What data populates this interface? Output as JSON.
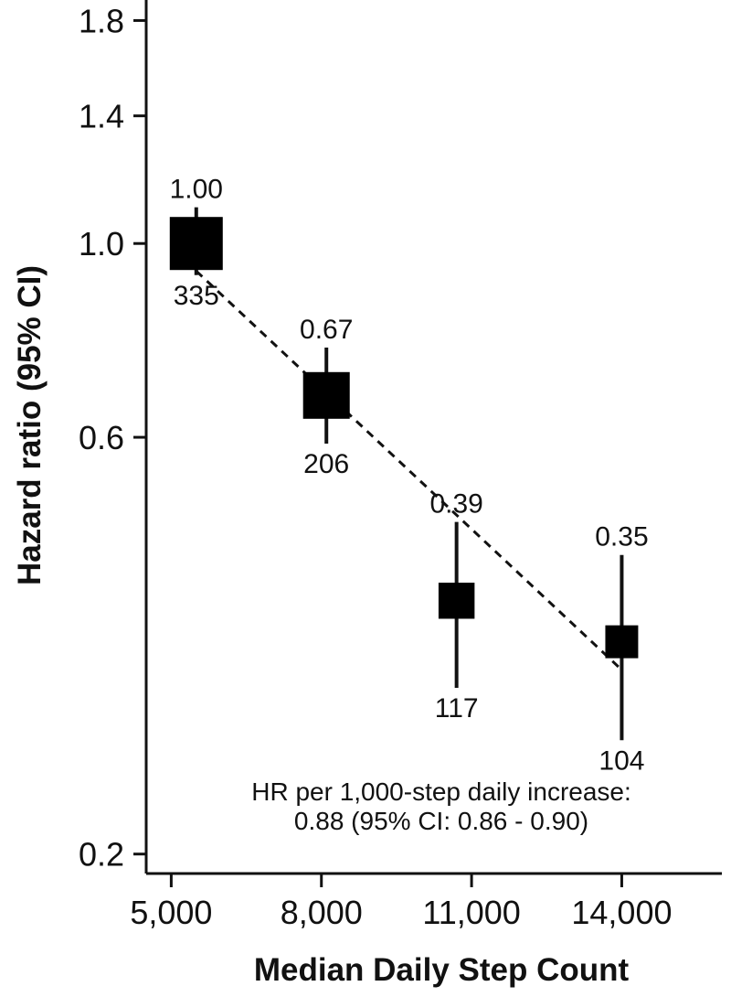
{
  "chart_data": {
    "type": "scatter",
    "xlabel": "Median Daily Step Count",
    "ylabel": "Hazard ratio (95% CI)",
    "x_ticks": [
      "5,000",
      "8,000",
      "11,000",
      "14,000"
    ],
    "x_tick_values": [
      5000,
      8000,
      11000,
      14000
    ],
    "y_ticks": [
      "0.2",
      "0.6",
      "1.0",
      "1.4",
      "1.8"
    ],
    "y_tick_values": [
      0.2,
      0.6,
      1.0,
      1.4,
      1.8
    ],
    "y_scale": "log",
    "xlim": [
      4500,
      16000
    ],
    "ylim": [
      0.19,
      1.9
    ],
    "grid": false,
    "points": [
      {
        "x": 5500,
        "hr": 1.0,
        "hr_label": "1.00",
        "ci_low": 0.92,
        "ci_high": 1.1,
        "n_label": "335",
        "marker_size": 1.0
      },
      {
        "x": 8100,
        "hr": 0.67,
        "hr_label": "0.67",
        "ci_low": 0.59,
        "ci_high": 0.76,
        "n_label": "206",
        "marker_size": 0.88
      },
      {
        "x": 10700,
        "hr": 0.39,
        "hr_label": "0.39",
        "ci_low": 0.31,
        "ci_high": 0.48,
        "n_label": "117",
        "marker_size": 0.68
      },
      {
        "x": 14000,
        "hr": 0.35,
        "hr_label": "0.35",
        "ci_low": 0.27,
        "ci_high": 0.44,
        "n_label": "104",
        "marker_size": 0.62
      }
    ],
    "trend_line": {
      "style": "dashed",
      "x": [
        5500,
        14000
      ],
      "y": [
        0.93,
        0.325
      ]
    },
    "annotation": {
      "line1": "HR per 1,000-step daily increase:",
      "line2": "0.88 (95% CI: 0.86 - 0.90)"
    }
  }
}
